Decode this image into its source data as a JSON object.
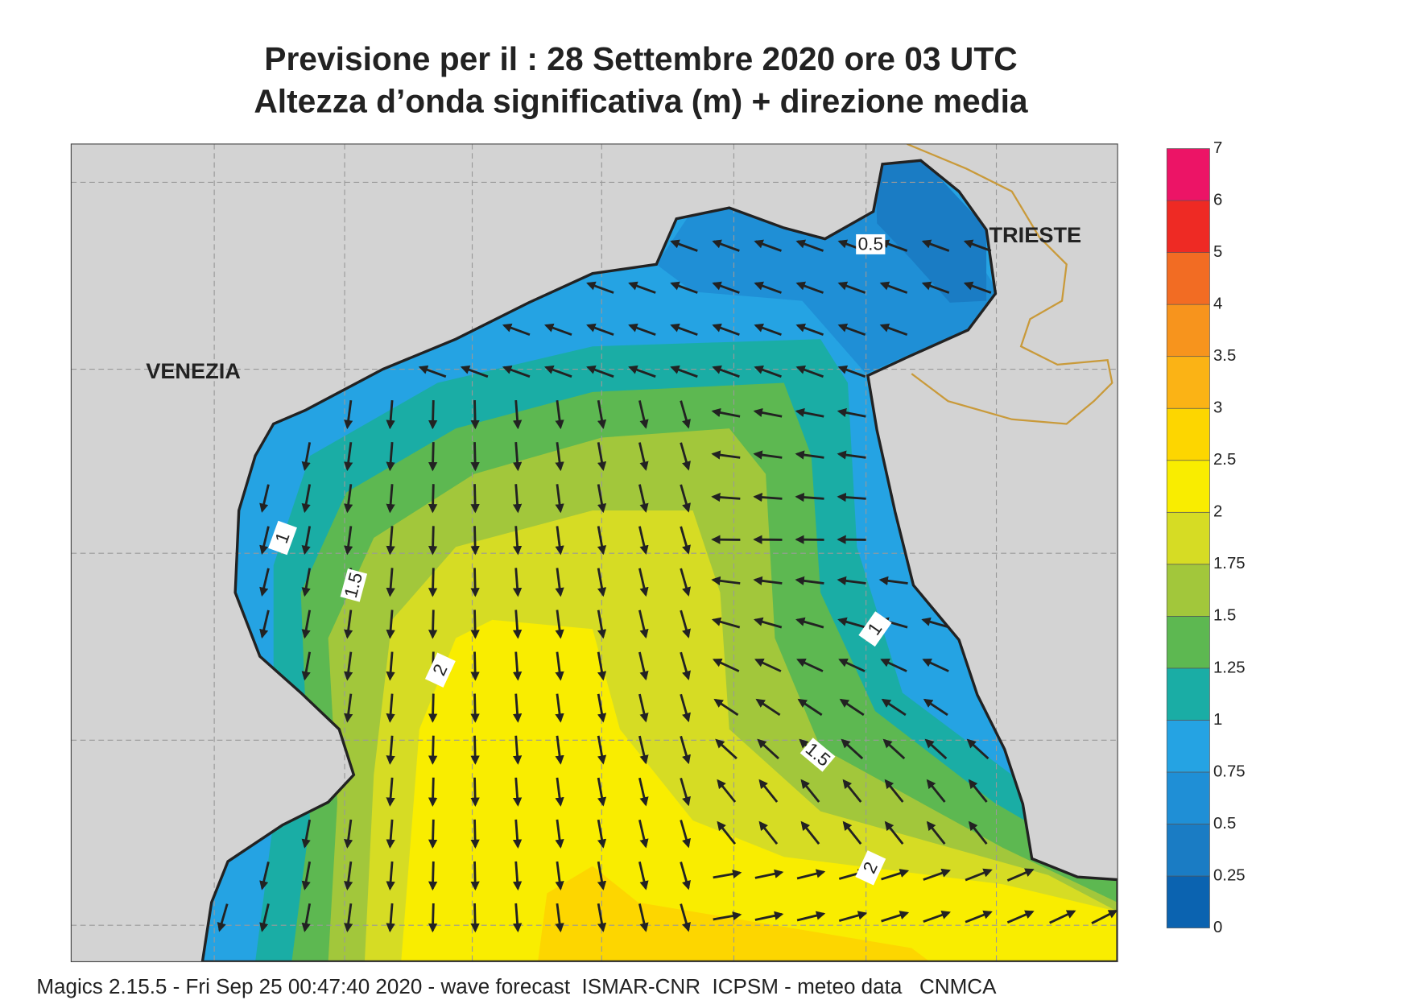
{
  "header": {
    "title": "Previsione per il  :  28 Settembre 2020   ore 03 UTC",
    "subtitle": "Altezza d’onda significativa (m) + direzione media"
  },
  "map": {
    "places": [
      "VENEZIA",
      "TRIESTE"
    ],
    "contour_labels": [
      "0.5",
      "1",
      "1.5",
      "2",
      "1",
      "1.5",
      "2"
    ]
  },
  "colorbar": {
    "levels": [
      0,
      0.25,
      0.5,
      0.75,
      1,
      1.25,
      1.5,
      1.75,
      2,
      2.5,
      3,
      3.5,
      4,
      5,
      6,
      7
    ],
    "colors": [
      "#0b63b0",
      "#1a7cc4",
      "#1f8fd6",
      "#25a3e3",
      "#1aada5",
      "#5db851",
      "#a2c73b",
      "#d6dc24",
      "#f9ed00",
      "#fdd600",
      "#fbb315",
      "#f7941d",
      "#f26c23",
      "#ee2a24",
      "#ec1466"
    ]
  },
  "footer": "Magics 2.15.5 - Fri Sep 25 00:47:40 2020 - wave forecast  ISMAR-CNR  ICPSM - meteo data   CNMCA"
}
